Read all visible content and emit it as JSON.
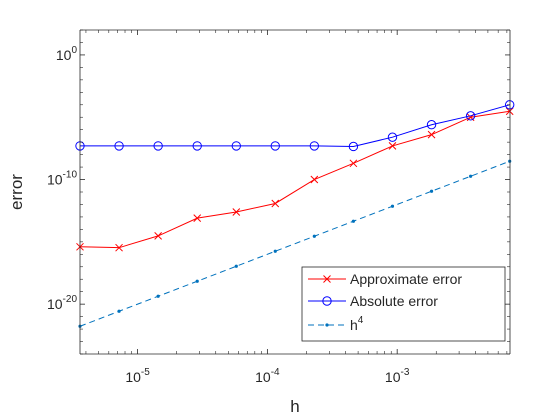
{
  "chart_data": {
    "type": "line",
    "xlabel": "h",
    "ylabel": "error",
    "x_scale": "log",
    "y_scale": "log",
    "xlim": [
      3.6e-06,
      0.0074
    ],
    "ylim": [
      1e-24,
      100.0
    ],
    "grid": false,
    "legend_position": "bottom-right",
    "x_ticks": [
      {
        "base": "10",
        "exp": "-5",
        "value": 1e-05
      },
      {
        "base": "10",
        "exp": "-4",
        "value": 0.0001
      },
      {
        "base": "10",
        "exp": "-3",
        "value": 0.001
      }
    ],
    "y_ticks": [
      {
        "base": "10",
        "exp": "0",
        "value": 1
      },
      {
        "base": "10",
        "exp": "-10",
        "value": 1e-10
      },
      {
        "base": "10",
        "exp": "-20",
        "value": 1e-20
      }
    ],
    "x": [
      3.6e-06,
      7.2e-06,
      1.44e-05,
      2.88e-05,
      5.76e-05,
      0.000115,
      0.00023,
      0.00046,
      0.00092,
      0.00184,
      0.00368,
      0.00736
    ],
    "series": [
      {
        "name": "Approximate error",
        "color": "#ff0000",
        "marker": "x",
        "line": "solid",
        "values": [
          4e-16,
          3.4e-16,
          3e-15,
          8e-14,
          2.5e-13,
          1.2e-12,
          1e-10,
          2e-09,
          5e-08,
          4e-07,
          1e-05,
          3e-05
        ]
      },
      {
        "name": "Absolute error",
        "color": "#0000ff",
        "marker": "o",
        "line": "solid",
        "values": [
          5e-08,
          5e-08,
          5e-08,
          5e-08,
          5e-08,
          5e-08,
          5e-08,
          4.5e-08,
          2.5e-07,
          2.5e-06,
          1.3e-05,
          0.0001
        ]
      },
      {
        "name": "h",
        "name_superscript": "4",
        "color": "#0072bd",
        "marker": ".",
        "line": "dashed",
        "values": [
          1.68e-22,
          2.69e-21,
          4.3e-20,
          6.88e-19,
          1.1e-17,
          1.76e-16,
          2.81e-15,
          4.5e-14,
          7.2e-13,
          1.15e-11,
          1.84e-10,
          2.94e-09
        ]
      }
    ]
  }
}
